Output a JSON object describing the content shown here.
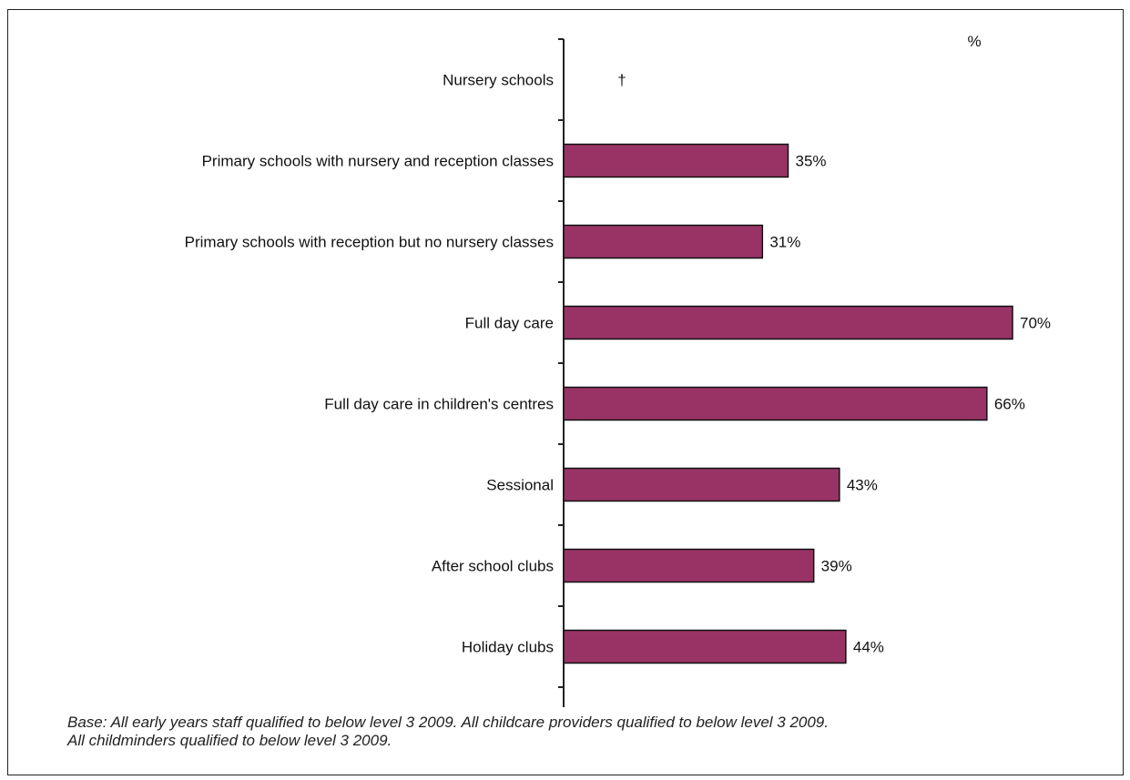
{
  "chart_data": {
    "type": "bar",
    "orientation": "horizontal",
    "unit_label": "%",
    "categories": [
      "Nursery schools",
      "Primary schools with nursery and reception classes",
      "Primary schools with reception but no nursery classes",
      "Full day care",
      "Full day care in children's centres",
      "Sessional",
      "After school clubs",
      "Holiday clubs"
    ],
    "values": [
      null,
      35,
      31,
      70,
      66,
      43,
      39,
      44
    ],
    "value_labels": [
      "†",
      "35%",
      "31%",
      "70%",
      "66%",
      "43%",
      "39%",
      "44%"
    ],
    "xlim": [
      0,
      100
    ],
    "bar_color": "#993366",
    "grid": false,
    "legend": "none"
  },
  "footnote": {
    "line1": "Base: All early years staff qualified to below level 3 2009. All childcare providers qualified to below level 3 2009.",
    "line2": "All childminders qualified to below level 3 2009."
  }
}
